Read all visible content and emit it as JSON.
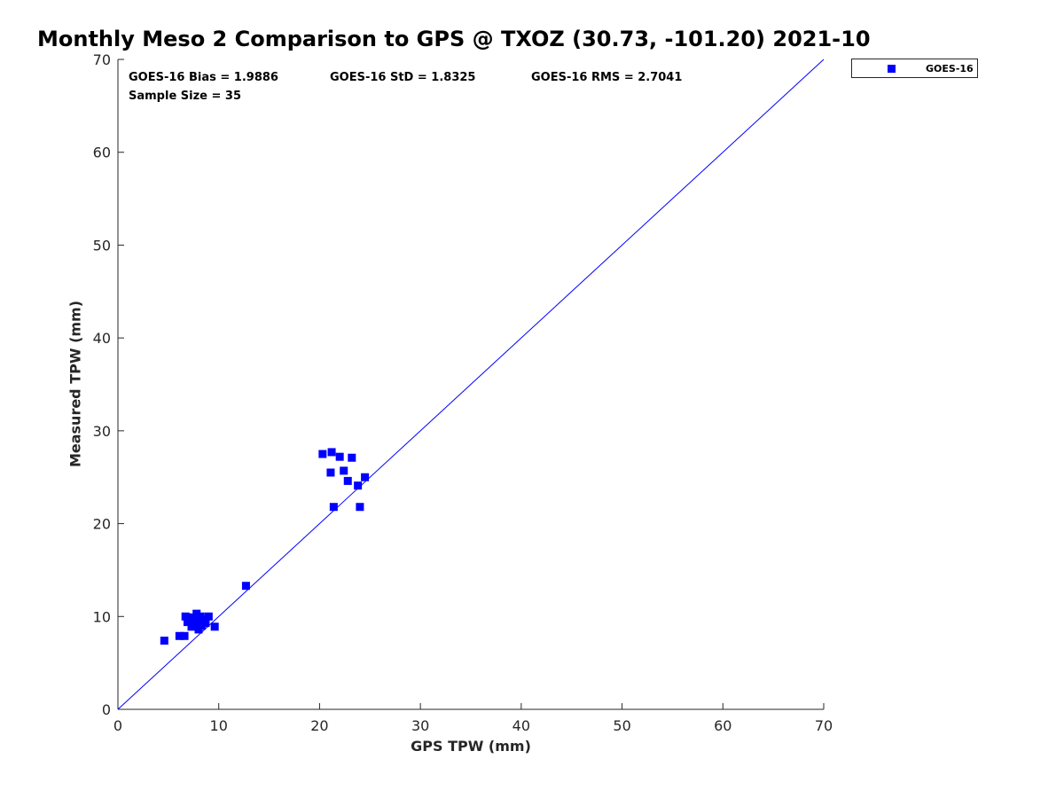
{
  "chart_data": {
    "type": "scatter",
    "title": "Monthly Meso 2 Comparison to GPS @ TXOZ (30.73, -101.20) 2021-10",
    "xlabel": "GPS TPW (mm)",
    "ylabel": "Measured TPW (mm)",
    "xlim": [
      0,
      70
    ],
    "ylim": [
      0,
      70
    ],
    "xticks": [
      0,
      10,
      20,
      30,
      40,
      50,
      60,
      70
    ],
    "yticks": [
      0,
      10,
      20,
      30,
      40,
      50,
      60,
      70
    ],
    "grid": false,
    "legend_position": "outside top-right",
    "stats": {
      "bias": "GOES-16 Bias = 1.9886",
      "std": "GOES-16 StD = 1.8325",
      "rms": "GOES-16 RMS = 2.7041",
      "sample_size": "Sample Size = 35"
    },
    "reference_line": {
      "name": "1:1",
      "points": [
        [
          0,
          0
        ],
        [
          70,
          70
        ]
      ],
      "color": "#0000ff"
    },
    "series": [
      {
        "name": "GOES-16",
        "color": "#0000ff",
        "marker": "square",
        "x": [
          4.6,
          6.1,
          6.6,
          6.7,
          6.9,
          7.2,
          7.4,
          7.6,
          7.8,
          7.9,
          8.0,
          8.1,
          8.3,
          8.5,
          8.7,
          9.0,
          9.6,
          7.3,
          12.7,
          20.3,
          21.1,
          21.2,
          21.4,
          22.0,
          22.4,
          22.8,
          23.2,
          23.8,
          24.0,
          24.5,
          7.7,
          8.2,
          7.1,
          8.6,
          6.9
        ],
        "y": [
          7.4,
          7.9,
          7.9,
          10.0,
          9.4,
          9.7,
          9.1,
          9.8,
          10.3,
          9.3,
          8.6,
          9.9,
          9.0,
          9.5,
          9.3,
          10.0,
          8.9,
          8.9,
          13.3,
          27.5,
          25.5,
          27.7,
          21.8,
          27.2,
          25.7,
          24.6,
          27.1,
          24.1,
          21.8,
          25.0,
          9.5,
          10.0,
          9.9,
          9.7,
          9.9
        ]
      }
    ]
  },
  "colors": {
    "axis": "#262626",
    "series": "#0000ff"
  }
}
